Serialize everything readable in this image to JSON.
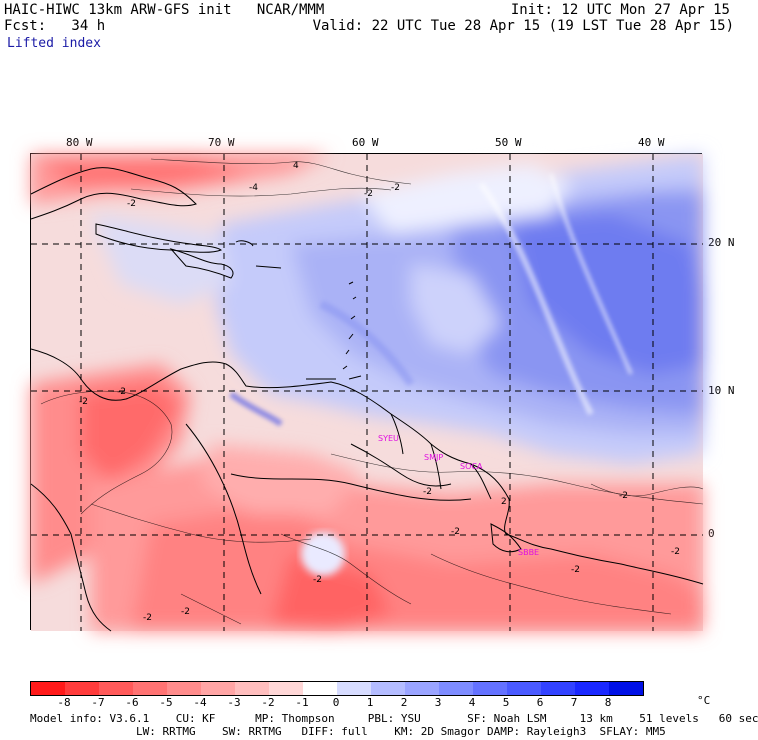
{
  "header": {
    "line1_left": "HAIC-HIWC 13km ARW-GFS init   NCAR/MMM",
    "line1_right": "Init: 12 UTC Mon 27 Apr 15",
    "line2_left": "Fcst:   34 h",
    "line2_right": "Valid: 22 UTC Tue 28 Apr 15 (19 LST Tue 28 Apr 15)",
    "variable": "Lifted index"
  },
  "map": {
    "lon_labels": [
      "80 W",
      "70 W",
      "60 W",
      "50 W",
      "40 W"
    ],
    "lat_labels": [
      "20 N",
      "10 N",
      "0"
    ],
    "contour_labels": [
      "4",
      "-4",
      "-2",
      "-2",
      "-2",
      "-2",
      "-2",
      "-2",
      "-2",
      "-2",
      "-2",
      "-2",
      "-2",
      "-2",
      "-2",
      "2"
    ],
    "stations": [
      "SYEU",
      "SMJP",
      "SOCA",
      "SBBE"
    ]
  },
  "colorbar": {
    "unit": "°C",
    "ticks": [
      "-8",
      "-7",
      "-6",
      "-5",
      "-4",
      "-3",
      "-2",
      "-1",
      "0",
      "1",
      "2",
      "3",
      "4",
      "5",
      "6",
      "7",
      "8"
    ],
    "colors": [
      "#ff1a1a",
      "#ff3c3c",
      "#ff5a5a",
      "#ff7373",
      "#ff8c8c",
      "#ffa5a5",
      "#ffbebe",
      "#ffd7d7",
      "#ffffff",
      "#d7dcff",
      "#b4bcff",
      "#9aa4ff",
      "#7e8cff",
      "#6472ff",
      "#4a5aff",
      "#3242ff",
      "#1a28ff",
      "#0010e6"
    ]
  },
  "footer": {
    "line1": "Model info: V3.6.1    CU: KF      MP: Thompson     PBL: YSU       SF: Noah LSM     13 km    51 levels   60 sec",
    "line2": "                LW: RRTMG    SW: RRTMG   DIFF: full    KM: 2D Smagor DAMP: Rayleigh3  SFLAY: MM5"
  }
}
